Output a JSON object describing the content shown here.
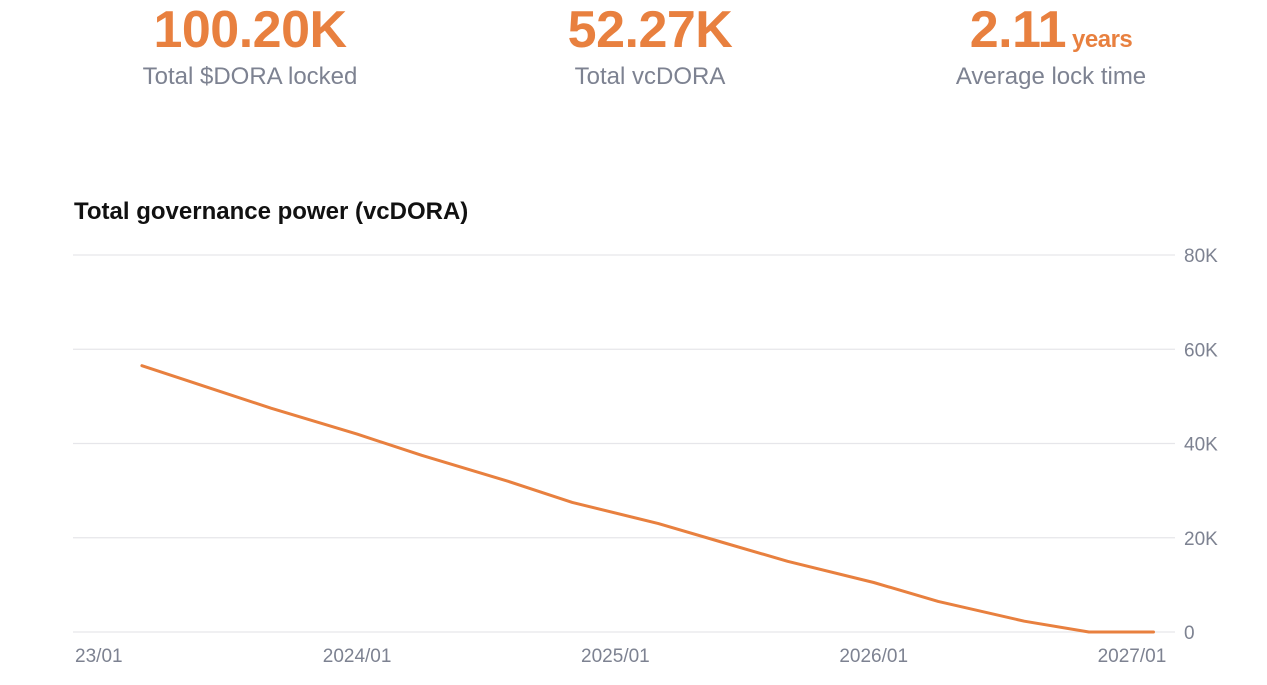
{
  "stats": [
    {
      "value": "100.20K",
      "unit": "",
      "label": "Total $DORA locked"
    },
    {
      "value": "52.27K",
      "unit": "",
      "label": "Total vcDORA"
    },
    {
      "value": "2.11",
      "unit": "years",
      "label": "Average lock time"
    }
  ],
  "colors": {
    "accent": "#e8803f",
    "muted": "#7d8291",
    "grid": "#e6e6ea"
  },
  "chart_data": {
    "type": "line",
    "title": "Total governance power (vcDORA)",
    "xlabel": "",
    "ylabel": "",
    "x_tick_labels": [
      "23/01",
      "2024/01",
      "2025/01",
      "2026/01",
      "2027/01"
    ],
    "y_tick_labels": [
      "0",
      "20K",
      "40K",
      "60K",
      "80K"
    ],
    "y_ticks": [
      0,
      20000,
      40000,
      60000,
      80000
    ],
    "ylim": [
      0,
      80000
    ],
    "x_ticks": [
      "2023-01",
      "2024-01",
      "2025-01",
      "2026-01",
      "2027-01"
    ],
    "xlim": [
      "2022-12",
      "2027-03"
    ],
    "grid": true,
    "y_axis_side": "right",
    "series": [
      {
        "x": [
          "2023-03",
          "2023-06",
          "2023-09",
          "2024-01",
          "2024-04",
          "2024-08",
          "2024-11",
          "2025-03",
          "2025-06",
          "2025-09",
          "2026-01",
          "2026-04",
          "2026-08",
          "2026-11",
          "2026-12",
          "2027-01",
          "2027-02"
        ],
        "values": [
          56500,
          52000,
          47500,
          42000,
          37500,
          32000,
          27500,
          23000,
          19000,
          15000,
          10500,
          6500,
          2300,
          0,
          0,
          0,
          0
        ]
      }
    ]
  }
}
